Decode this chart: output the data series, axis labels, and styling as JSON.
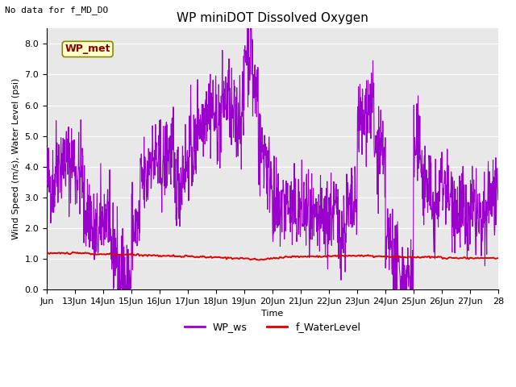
{
  "title": "WP miniDOT Dissolved Oxygen",
  "no_data_text": "No data for f_MD_DO",
  "xlabel": "Time",
  "ylabel": "Wind Speed (m/s), Water Level (psi)",
  "ylim": [
    0.0,
    8.5
  ],
  "yticks": [
    0.0,
    1.0,
    2.0,
    3.0,
    4.0,
    5.0,
    6.0,
    7.0,
    8.0
  ],
  "xlim_start": 12.0,
  "xlim_end": 28.0,
  "xtick_positions": [
    12,
    13,
    14,
    15,
    16,
    17,
    18,
    19,
    20,
    21,
    22,
    23,
    24,
    25,
    26,
    27,
    28
  ],
  "xtick_labels": [
    "Jun",
    "13Jun",
    "14Jun",
    "15Jun",
    "16Jun",
    "17Jun",
    "18Jun",
    "19Jun",
    "20Jun",
    "21Jun",
    "22Jun",
    "23Jun",
    "24Jun",
    "25Jun",
    "26Jun",
    "27Jun",
    "28"
  ],
  "legend_entries": [
    "WP_ws",
    "f_WaterLevel"
  ],
  "legend_colors": [
    "#9900cc",
    "#dd0000"
  ],
  "wp_met_box_facecolor": "#ffffcc",
  "wp_met_box_edgecolor": "#888800",
  "wp_met_text_color": "#880000",
  "bg_color": "#e8e8e8",
  "fig_bg_color": "#ffffff",
  "grid_color": "#ffffff",
  "ws_color": "#9900cc",
  "wl_color": "#dd0000",
  "ws_linewidth": 0.8,
  "wl_linewidth": 1.4,
  "title_fontsize": 11,
  "label_fontsize": 8,
  "tick_fontsize": 8,
  "legend_fontsize": 9,
  "no_data_fontsize": 8
}
